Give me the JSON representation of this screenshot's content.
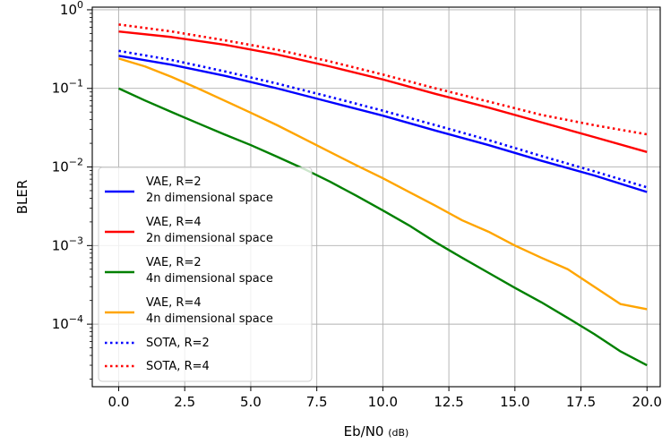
{
  "chart_data": {
    "type": "line",
    "title": "",
    "xlabel": "Eb/N0",
    "xlabel_unit": "(dB)",
    "ylabel": "BLER",
    "yscale": "log",
    "xlim": [
      -1.0,
      20.5
    ],
    "ylim": [
      1.6e-05,
      1.08
    ],
    "grid": true,
    "legend_position": "lower-left",
    "x_ticks": [
      "0.0",
      "2.5",
      "5.0",
      "7.5",
      "10.0",
      "12.5",
      "15.0",
      "17.5",
      "20.0"
    ],
    "x_tick_values": [
      0,
      2.5,
      5,
      7.5,
      10,
      12.5,
      15,
      17.5,
      20
    ],
    "y_ticks": [
      {
        "value": 1,
        "base": "10",
        "exp": "0"
      },
      {
        "value": 0.1,
        "base": "10",
        "exp": "−1"
      },
      {
        "value": 0.01,
        "base": "10",
        "exp": "−2"
      },
      {
        "value": 0.001,
        "base": "10",
        "exp": "−3"
      },
      {
        "value": 0.0001,
        "base": "10",
        "exp": "−4"
      }
    ],
    "x": [
      0,
      5,
      10,
      15,
      20
    ],
    "series": [
      {
        "name": "VAE, R=2\n2n dimensional space",
        "color": "#0000ff",
        "style": "solid",
        "x": [
          0,
          2,
          4,
          6,
          8,
          10,
          12,
          14,
          16,
          18,
          20
        ],
        "values": [
          0.26,
          0.2,
          0.145,
          0.1,
          0.067,
          0.045,
          0.029,
          0.019,
          0.012,
          0.0078,
          0.0048
        ]
      },
      {
        "name": "VAE, R=4\n2n dimensional space",
        "color": "#ff0000",
        "style": "solid",
        "x": [
          0,
          2,
          4,
          6,
          8,
          10,
          12,
          14,
          16,
          18,
          20
        ],
        "values": [
          0.53,
          0.45,
          0.36,
          0.27,
          0.19,
          0.13,
          0.085,
          0.057,
          0.037,
          0.024,
          0.0155
        ]
      },
      {
        "name": "VAE, R=2\n4n dimensional space",
        "color": "#008000",
        "style": "solid",
        "x": [
          0,
          1,
          2,
          3,
          4,
          5,
          6,
          7,
          8,
          9,
          10,
          11,
          12,
          13,
          14,
          15,
          16,
          17,
          18,
          19,
          20
        ],
        "values": [
          0.1,
          0.07,
          0.05,
          0.036,
          0.026,
          0.019,
          0.0135,
          0.0095,
          0.0065,
          0.0043,
          0.0028,
          0.0018,
          0.0011,
          0.0007,
          0.00045,
          0.00029,
          0.00019,
          0.00012,
          7.5e-05,
          4.5e-05,
          3e-05
        ]
      },
      {
        "name": "VAE, R=4\n4n dimensional space",
        "color": "#ffa500",
        "style": "solid",
        "x": [
          0,
          1,
          2,
          3,
          4,
          5,
          6,
          7,
          8,
          9,
          10,
          11,
          12,
          13,
          14,
          15,
          16,
          17,
          18,
          19,
          20
        ],
        "values": [
          0.24,
          0.19,
          0.14,
          0.1,
          0.07,
          0.049,
          0.034,
          0.023,
          0.0155,
          0.0105,
          0.0072,
          0.0048,
          0.0032,
          0.0021,
          0.0015,
          0.001,
          0.0007,
          0.0005,
          0.0003,
          0.00018,
          0.000155
        ]
      },
      {
        "name": "SOTA, R=2",
        "color": "#0000ff",
        "style": "dotted",
        "x": [
          0,
          2,
          4,
          6,
          8,
          10,
          12,
          14,
          16,
          18,
          20
        ],
        "values": [
          0.3,
          0.23,
          0.165,
          0.115,
          0.078,
          0.052,
          0.034,
          0.022,
          0.0138,
          0.0088,
          0.0055
        ]
      },
      {
        "name": "SOTA, R=4",
        "color": "#ff0000",
        "style": "dotted",
        "x": [
          0,
          2,
          4,
          6,
          8,
          10,
          12,
          14,
          16,
          18,
          20
        ],
        "values": [
          0.65,
          0.53,
          0.41,
          0.31,
          0.22,
          0.15,
          0.1,
          0.068,
          0.046,
          0.034,
          0.026
        ]
      }
    ]
  }
}
